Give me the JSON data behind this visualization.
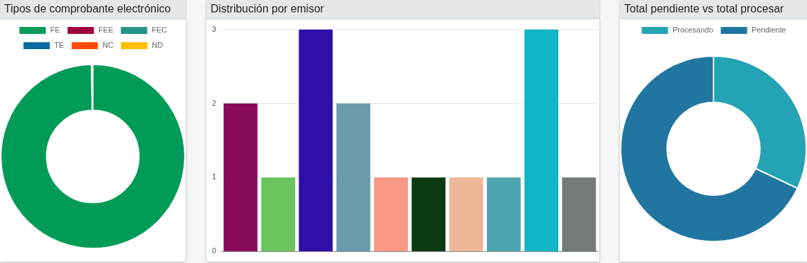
{
  "chart_data": [
    {
      "type": "donut",
      "title": "Tipos de comprobante electrónico",
      "categories": [
        "FE",
        "FEE",
        "FEC",
        "TE",
        "NC",
        "ND"
      ],
      "values": [
        99.8,
        0,
        0,
        0,
        0,
        0.2
      ],
      "colors": [
        "#009b58",
        "#a0003c",
        "#239486",
        "#0a6aa1",
        "#ff4c0c",
        "#ffbf00"
      ],
      "legend": "top"
    },
    {
      "type": "bar",
      "title": "Distribución por emisor",
      "categories": [
        null,
        null,
        null,
        null,
        null,
        null,
        null,
        null,
        null,
        null
      ],
      "values": [
        2,
        1,
        3,
        2,
        1,
        1,
        1,
        1,
        3,
        1
      ],
      "colors": [
        "#8a0b5c",
        "#6cc45f",
        "#2e0fa8",
        "#6a9aab",
        "#f99887",
        "#0b3a13",
        "#ecb897",
        "#4fa5af",
        "#10b5c6",
        "#737b77"
      ],
      "ylim": [
        0,
        3
      ],
      "yticks": [
        0,
        1,
        2,
        3
      ],
      "grid": "y",
      "tick_labels": "y",
      "legend": false
    },
    {
      "type": "donut",
      "title": "Total pendiente vs total procesar",
      "categories": [
        "Procesando",
        "Pendiente"
      ],
      "values": [
        32,
        68
      ],
      "colors": [
        "#24a3b4",
        "#2076a0"
      ],
      "legend": "top"
    }
  ]
}
